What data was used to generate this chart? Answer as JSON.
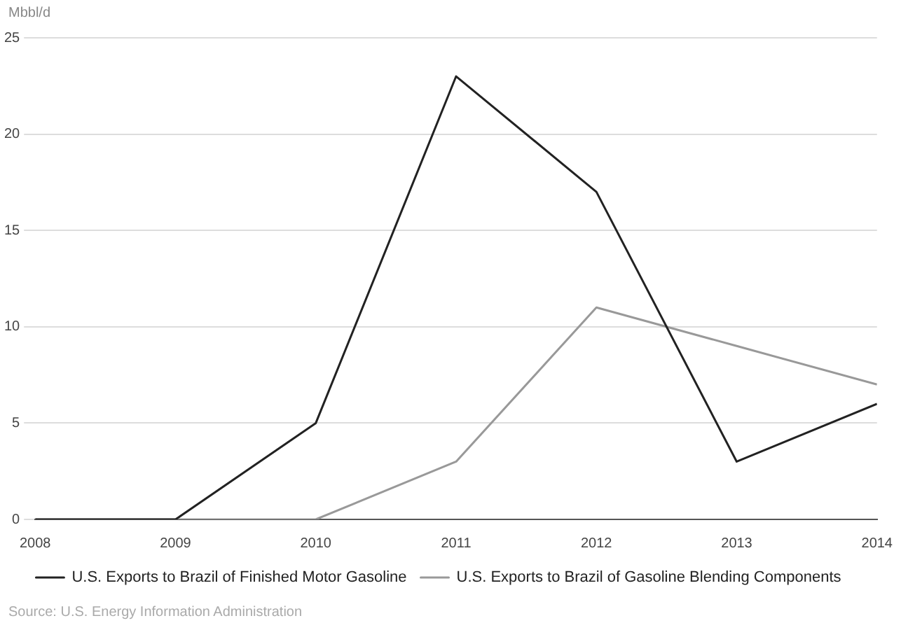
{
  "chart_data": {
    "type": "line",
    "ylabel": "Mbbl/d",
    "x": [
      2008,
      2009,
      2010,
      2011,
      2012,
      2013,
      2014
    ],
    "series": [
      {
        "name": "U.S. Exports to Brazil of Finished Motor Gasoline",
        "color": "#222222",
        "values": [
          0,
          0,
          5,
          23,
          17,
          3,
          6
        ]
      },
      {
        "name": "U.S. Exports to Brazil of Gasoline Blending Components",
        "color": "#999999",
        "values": [
          0,
          0,
          0,
          3,
          11,
          9,
          7
        ]
      }
    ],
    "xlim": [
      2008,
      2014
    ],
    "xticks": [
      2008,
      2009,
      2010,
      2011,
      2012,
      2013,
      2014
    ],
    "ylim": [
      0,
      25
    ],
    "yticks": [
      0,
      5,
      10,
      15,
      20,
      25
    ],
    "grid": "y",
    "legend": "bottom",
    "marker": "none",
    "line_style": "solid",
    "annotations": [
      "Source: U.S. Energy Information Administration"
    ]
  }
}
